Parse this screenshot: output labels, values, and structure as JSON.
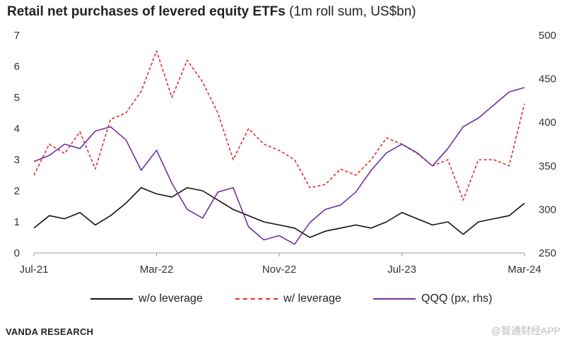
{
  "chart_data": {
    "type": "line",
    "title": "Retail net purchases of levered equity ETFs",
    "subtitle": "(1m roll sum, US$bn)",
    "x_tick_labels": [
      "Jul-21",
      "Mar-22",
      "Nov-22",
      "Jul-23",
      "Mar-24"
    ],
    "y_left": {
      "ticks": [
        "0",
        "1",
        "2",
        "3",
        "4",
        "5",
        "6",
        "7"
      ],
      "range": [
        0,
        7
      ]
    },
    "y_right": {
      "ticks": [
        "250",
        "300",
        "350",
        "400",
        "450",
        "500"
      ],
      "range": [
        250,
        500
      ]
    },
    "grid": false,
    "legend_position": "bottom",
    "x": [
      "2021-07",
      "2021-08",
      "2021-09",
      "2021-10",
      "2021-11",
      "2021-12",
      "2022-01",
      "2022-02",
      "2022-03",
      "2022-04",
      "2022-05",
      "2022-06",
      "2022-07",
      "2022-08",
      "2022-09",
      "2022-10",
      "2022-11",
      "2022-12",
      "2023-01",
      "2023-02",
      "2023-03",
      "2023-04",
      "2023-05",
      "2023-06",
      "2023-07",
      "2023-08",
      "2023-09",
      "2023-10",
      "2023-11",
      "2023-12",
      "2024-01",
      "2024-02",
      "2024-03"
    ],
    "series": [
      {
        "name": "w/o leverage",
        "axis": "left",
        "color": "#111111",
        "dash": "solid",
        "values": [
          0.8,
          1.2,
          1.1,
          1.3,
          0.9,
          1.2,
          1.6,
          2.1,
          1.9,
          1.8,
          2.1,
          2.0,
          1.7,
          1.4,
          1.2,
          1.0,
          0.9,
          0.8,
          0.5,
          0.7,
          0.8,
          0.9,
          0.8,
          1.0,
          1.3,
          1.1,
          0.9,
          1.0,
          0.6,
          1.0,
          1.1,
          1.2,
          1.6
        ]
      },
      {
        "name": "w/ leverage",
        "axis": "left",
        "color": "#e8282b",
        "dash": "dashed",
        "values": [
          2.5,
          3.5,
          3.2,
          3.9,
          2.7,
          4.3,
          4.5,
          5.2,
          6.5,
          5.0,
          6.2,
          5.5,
          4.5,
          3.0,
          4.0,
          3.5,
          3.3,
          3.0,
          2.1,
          2.2,
          2.7,
          2.5,
          3.0,
          3.7,
          3.5,
          3.2,
          2.8,
          3.0,
          1.7,
          3.0,
          3.0,
          2.8,
          4.8
        ]
      },
      {
        "name": "QQQ (px, rhs)",
        "axis": "right",
        "color": "#7030a0",
        "dash": "solid",
        "values": [
          355,
          362,
          375,
          370,
          390,
          395,
          380,
          345,
          368,
          330,
          300,
          290,
          320,
          325,
          280,
          265,
          270,
          260,
          285,
          300,
          305,
          320,
          345,
          365,
          375,
          365,
          350,
          370,
          395,
          405,
          420,
          435,
          440
        ]
      }
    ]
  },
  "footer": {
    "source": "VANDA RESEARCH",
    "watermark": "@智通财经APP"
  }
}
